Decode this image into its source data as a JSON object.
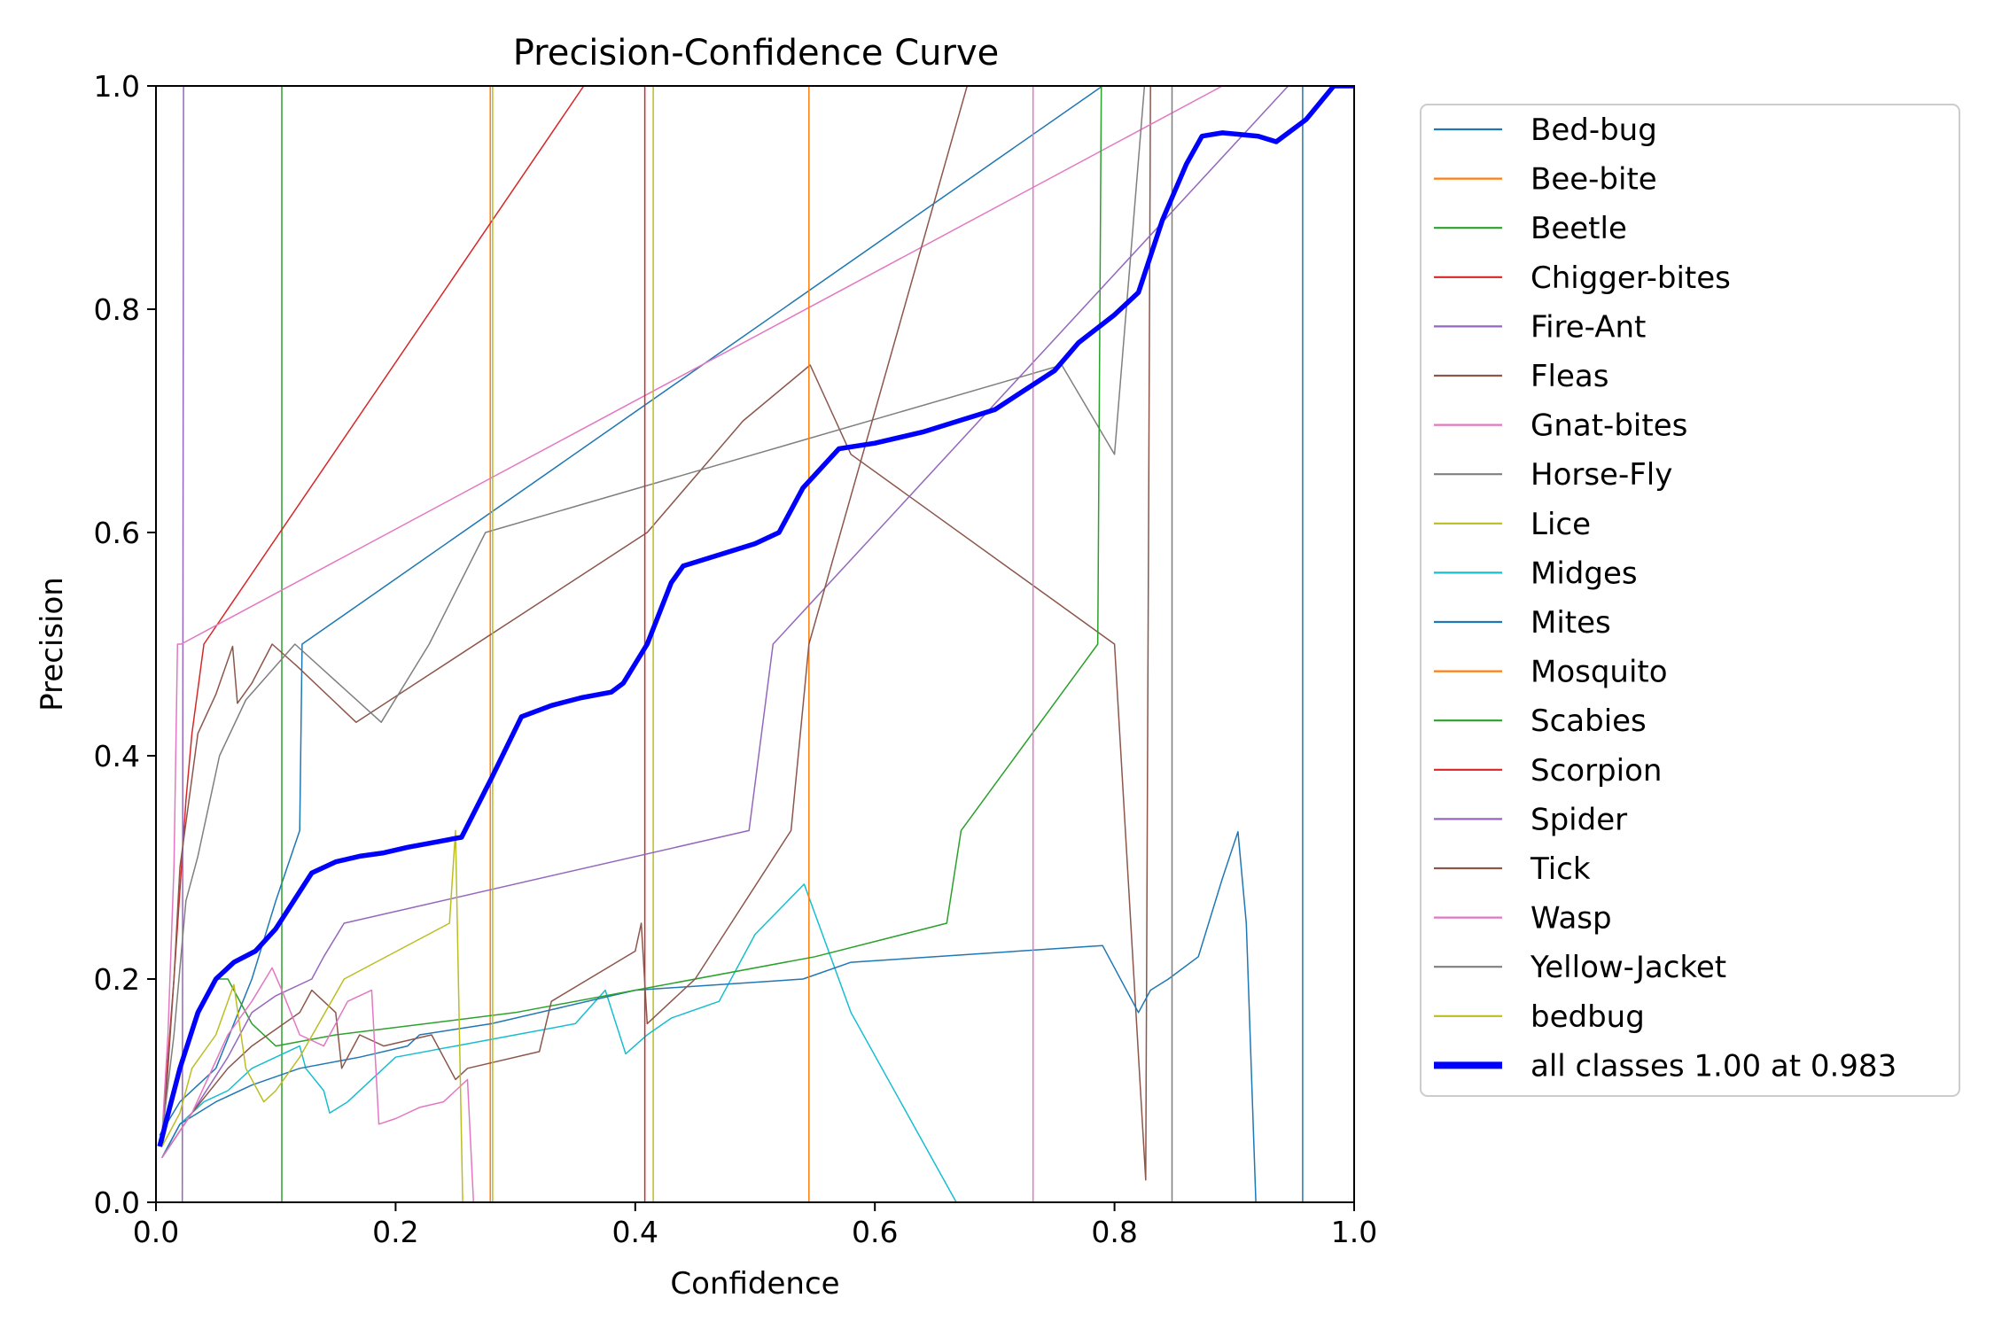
{
  "chart_data": {
    "type": "line",
    "title": "Precision-Confidence Curve",
    "xlabel": "Confidence",
    "ylabel": "Precision",
    "xlim": [
      0,
      1
    ],
    "ylim": [
      0,
      1
    ],
    "xticks": [
      "0.0",
      "0.2",
      "0.4",
      "0.6",
      "0.8",
      "1.0"
    ],
    "yticks": [
      "0.0",
      "0.2",
      "0.4",
      "0.6",
      "0.8",
      "1.0"
    ],
    "grid": false,
    "legend_position": "outside-right",
    "series": [
      {
        "name": "Bed-bug",
        "color": "#1f77b4",
        "width": 1.5,
        "points": [
          [
            0.003,
            0.06
          ],
          [
            0.02,
            0.09
          ],
          [
            0.05,
            0.12
          ],
          [
            0.08,
            0.2
          ],
          [
            0.1,
            0.27
          ],
          [
            0.12,
            0.333
          ],
          [
            0.122,
            0.5
          ],
          [
            0.79,
            1.0
          ],
          [
            1.0,
            1.0
          ]
        ]
      },
      {
        "name": "Bee-bite",
        "color": "#ff7f0e",
        "width": 1.5,
        "points": [
          [
            0.0,
            0.0
          ],
          [
            0.279,
            0.0
          ],
          [
            0.279,
            1.0
          ],
          [
            1.0,
            1.0
          ]
        ]
      },
      {
        "name": "Beetle",
        "color": "#2ca02c",
        "width": 1.5,
        "points": [
          [
            0.0,
            0.0
          ],
          [
            0.105,
            0.0
          ],
          [
            0.105,
            1.0
          ],
          [
            1.0,
            1.0
          ]
        ]
      },
      {
        "name": "Chigger-bites",
        "color": "#d62728",
        "width": 1.5,
        "points": [
          [
            0.005,
            0.06
          ],
          [
            0.015,
            0.2
          ],
          [
            0.025,
            0.36
          ],
          [
            0.03,
            0.42
          ],
          [
            0.04,
            0.5
          ],
          [
            0.357,
            1.0
          ],
          [
            1.0,
            1.0
          ]
        ]
      },
      {
        "name": "Fire-Ant",
        "color": "#9467bd",
        "width": 1.5,
        "points": [
          [
            0.0,
            0.0
          ],
          [
            0.022,
            0.0
          ],
          [
            0.023,
            1.0
          ],
          [
            1.0,
            1.0
          ]
        ]
      },
      {
        "name": "Fleas",
        "color": "#8c564b",
        "width": 1.5,
        "points": [
          [
            0.005,
            0.05
          ],
          [
            0.01,
            0.12
          ],
          [
            0.015,
            0.2
          ],
          [
            0.02,
            0.3
          ],
          [
            0.03,
            0.38
          ],
          [
            0.035,
            0.42
          ],
          [
            0.05,
            0.455
          ],
          [
            0.064,
            0.498
          ],
          [
            0.068,
            0.447
          ],
          [
            0.08,
            0.465
          ],
          [
            0.097,
            0.5
          ],
          [
            0.118,
            0.48
          ],
          [
            0.167,
            0.43
          ],
          [
            0.41,
            0.6
          ],
          [
            0.49,
            0.7
          ],
          [
            0.546,
            0.75
          ],
          [
            0.58,
            0.67
          ],
          [
            0.8,
            0.5
          ],
          [
            0.826,
            0.02
          ],
          [
            0.83,
            1.0
          ],
          [
            1.0,
            1.0
          ]
        ]
      },
      {
        "name": "Gnat-bites",
        "color": "#e377c2",
        "width": 1.5,
        "points": [
          [
            0.005,
            0.06
          ],
          [
            0.01,
            0.15
          ],
          [
            0.015,
            0.3
          ],
          [
            0.018,
            0.5
          ],
          [
            0.021,
            0.5
          ],
          [
            0.89,
            1.0
          ],
          [
            1.0,
            1.0
          ]
        ]
      },
      {
        "name": "Horse-Fly",
        "color": "#7f7f7f",
        "width": 1.5,
        "points": [
          [
            0.005,
            0.06
          ],
          [
            0.015,
            0.15
          ],
          [
            0.025,
            0.27
          ],
          [
            0.035,
            0.31
          ],
          [
            0.053,
            0.4
          ],
          [
            0.075,
            0.45
          ],
          [
            0.116,
            0.5
          ],
          [
            0.188,
            0.43
          ],
          [
            0.228,
            0.5
          ],
          [
            0.275,
            0.6
          ],
          [
            0.756,
            0.75
          ],
          [
            0.8,
            0.67
          ],
          [
            0.825,
            1.0
          ],
          [
            1.0,
            1.0
          ]
        ]
      },
      {
        "name": "Lice",
        "color": "#bcbd22",
        "width": 1.5,
        "points": [
          [
            0.0,
            0.0
          ],
          [
            0.415,
            0.0
          ],
          [
            0.415,
            1.0
          ],
          [
            1.0,
            1.0
          ]
        ]
      },
      {
        "name": "Midges",
        "color": "#17becf",
        "width": 1.5,
        "points": [
          [
            0.005,
            0.04
          ],
          [
            0.02,
            0.07
          ],
          [
            0.04,
            0.09
          ],
          [
            0.06,
            0.1
          ],
          [
            0.08,
            0.12
          ],
          [
            0.1,
            0.13
          ],
          [
            0.12,
            0.14
          ],
          [
            0.125,
            0.12
          ],
          [
            0.14,
            0.1
          ],
          [
            0.145,
            0.08
          ],
          [
            0.16,
            0.09
          ],
          [
            0.2,
            0.13
          ],
          [
            0.25,
            0.14
          ],
          [
            0.3,
            0.15
          ],
          [
            0.35,
            0.16
          ],
          [
            0.375,
            0.19
          ],
          [
            0.392,
            0.133
          ],
          [
            0.41,
            0.15
          ],
          [
            0.43,
            0.165
          ],
          [
            0.47,
            0.18
          ],
          [
            0.5,
            0.24
          ],
          [
            0.541,
            0.285
          ],
          [
            0.58,
            0.17
          ],
          [
            0.668,
            0.0
          ],
          [
            1.0,
            0.0
          ]
        ]
      },
      {
        "name": "Mites",
        "color": "#1f77b4",
        "width": 1.5,
        "points": [
          [
            0.005,
            0.04
          ],
          [
            0.02,
            0.07
          ],
          [
            0.05,
            0.09
          ],
          [
            0.08,
            0.105
          ],
          [
            0.12,
            0.12
          ],
          [
            0.17,
            0.13
          ],
          [
            0.21,
            0.14
          ],
          [
            0.22,
            0.15
          ],
          [
            0.28,
            0.16
          ],
          [
            0.4,
            0.19
          ],
          [
            0.54,
            0.2
          ],
          [
            0.58,
            0.215
          ],
          [
            0.79,
            0.23
          ],
          [
            0.82,
            0.17
          ],
          [
            0.83,
            0.19
          ],
          [
            0.845,
            0.2
          ],
          [
            0.87,
            0.22
          ],
          [
            0.89,
            0.29
          ],
          [
            0.903,
            0.332
          ],
          [
            0.91,
            0.25
          ],
          [
            0.918,
            0.0
          ],
          [
            0.957,
            0.0
          ],
          [
            0.957,
            1.0
          ],
          [
            1.0,
            1.0
          ]
        ]
      },
      {
        "name": "Mosquito",
        "color": "#ff7f0e",
        "width": 1.5,
        "points": [
          [
            0.0,
            0.0
          ],
          [
            0.545,
            0.0
          ],
          [
            0.545,
            1.0
          ],
          [
            1.0,
            1.0
          ]
        ]
      },
      {
        "name": "Scabies",
        "color": "#2ca02c",
        "width": 1.5,
        "points": [
          [
            0.005,
            0.05
          ],
          [
            0.02,
            0.12
          ],
          [
            0.03,
            0.15
          ],
          [
            0.04,
            0.18
          ],
          [
            0.05,
            0.2
          ],
          [
            0.06,
            0.2
          ],
          [
            0.08,
            0.16
          ],
          [
            0.1,
            0.14
          ],
          [
            0.15,
            0.15
          ],
          [
            0.3,
            0.17
          ],
          [
            0.4,
            0.19
          ],
          [
            0.55,
            0.22
          ],
          [
            0.66,
            0.25
          ],
          [
            0.672,
            0.333
          ],
          [
            0.786,
            0.5
          ],
          [
            0.789,
            1.0
          ],
          [
            1.0,
            1.0
          ]
        ]
      },
      {
        "name": "Scorpion",
        "color": "#d62728",
        "width": 1.5,
        "points": [
          [
            0.0,
            0.0
          ],
          [
            0.408,
            0.0
          ],
          [
            0.408,
            1.0
          ],
          [
            1.0,
            1.0
          ]
        ]
      },
      {
        "name": "Spider",
        "color": "#9467bd",
        "width": 1.5,
        "points": [
          [
            0.005,
            0.04
          ],
          [
            0.03,
            0.08
          ],
          [
            0.06,
            0.13
          ],
          [
            0.08,
            0.17
          ],
          [
            0.1,
            0.185
          ],
          [
            0.13,
            0.2
          ],
          [
            0.14,
            0.22
          ],
          [
            0.157,
            0.25
          ],
          [
            0.495,
            0.333
          ],
          [
            0.515,
            0.5
          ],
          [
            0.945,
            1.0
          ],
          [
            1.0,
            1.0
          ]
        ]
      },
      {
        "name": "Tick",
        "color": "#8c564b",
        "width": 1.5,
        "points": [
          [
            0.005,
            0.04
          ],
          [
            0.03,
            0.08
          ],
          [
            0.06,
            0.12
          ],
          [
            0.08,
            0.14
          ],
          [
            0.1,
            0.155
          ],
          [
            0.12,
            0.17
          ],
          [
            0.13,
            0.19
          ],
          [
            0.14,
            0.18
          ],
          [
            0.15,
            0.17
          ],
          [
            0.155,
            0.12
          ],
          [
            0.17,
            0.15
          ],
          [
            0.19,
            0.14
          ],
          [
            0.23,
            0.15
          ],
          [
            0.25,
            0.11
          ],
          [
            0.26,
            0.12
          ],
          [
            0.32,
            0.135
          ],
          [
            0.33,
            0.18
          ],
          [
            0.4,
            0.225
          ],
          [
            0.405,
            0.25
          ],
          [
            0.41,
            0.16
          ],
          [
            0.45,
            0.2
          ],
          [
            0.48,
            0.25
          ],
          [
            0.53,
            0.333
          ],
          [
            0.545,
            0.5
          ],
          [
            0.677,
            1.0
          ],
          [
            1.0,
            1.0
          ]
        ]
      },
      {
        "name": "Wasp",
        "color": "#e377c2",
        "width": 1.5,
        "points": [
          [
            0.005,
            0.04
          ],
          [
            0.03,
            0.08
          ],
          [
            0.06,
            0.15
          ],
          [
            0.08,
            0.18
          ],
          [
            0.097,
            0.21
          ],
          [
            0.105,
            0.19
          ],
          [
            0.12,
            0.15
          ],
          [
            0.14,
            0.14
          ],
          [
            0.16,
            0.18
          ],
          [
            0.18,
            0.19
          ],
          [
            0.186,
            0.07
          ],
          [
            0.2,
            0.075
          ],
          [
            0.22,
            0.085
          ],
          [
            0.24,
            0.09
          ],
          [
            0.25,
            0.1
          ],
          [
            0.26,
            0.11
          ],
          [
            0.265,
            0.0
          ],
          [
            0.732,
            0.0
          ],
          [
            0.732,
            1.0
          ],
          [
            1.0,
            1.0
          ]
        ]
      },
      {
        "name": "Yellow-Jacket",
        "color": "#7f7f7f",
        "width": 1.5,
        "points": [
          [
            0.0,
            0.0
          ],
          [
            0.848,
            0.0
          ],
          [
            0.848,
            1.0
          ],
          [
            1.0,
            1.0
          ]
        ]
      },
      {
        "name": "bedbug",
        "color": "#bcbd22",
        "width": 1.5,
        "points": [
          [
            0.005,
            0.05
          ],
          [
            0.02,
            0.08
          ],
          [
            0.03,
            0.12
          ],
          [
            0.05,
            0.15
          ],
          [
            0.065,
            0.195
          ],
          [
            0.075,
            0.12
          ],
          [
            0.09,
            0.09
          ],
          [
            0.1,
            0.1
          ],
          [
            0.12,
            0.13
          ],
          [
            0.157,
            0.2
          ],
          [
            0.245,
            0.25
          ],
          [
            0.25,
            0.333
          ],
          [
            0.256,
            0.0
          ],
          [
            0.281,
            0.0
          ],
          [
            0.281,
            1.0
          ],
          [
            1.0,
            1.0
          ]
        ]
      },
      {
        "name": "all classes 1.00 at 0.983",
        "color": "#0000ff",
        "width": 5.5,
        "points": [
          [
            0.003,
            0.05
          ],
          [
            0.02,
            0.12
          ],
          [
            0.035,
            0.17
          ],
          [
            0.05,
            0.2
          ],
          [
            0.065,
            0.215
          ],
          [
            0.083,
            0.225
          ],
          [
            0.1,
            0.245
          ],
          [
            0.115,
            0.27
          ],
          [
            0.13,
            0.295
          ],
          [
            0.15,
            0.305
          ],
          [
            0.17,
            0.31
          ],
          [
            0.19,
            0.313
          ],
          [
            0.21,
            0.318
          ],
          [
            0.23,
            0.322
          ],
          [
            0.25,
            0.326
          ],
          [
            0.255,
            0.327
          ],
          [
            0.28,
            0.38
          ],
          [
            0.305,
            0.435
          ],
          [
            0.33,
            0.445
          ],
          [
            0.355,
            0.452
          ],
          [
            0.38,
            0.457
          ],
          [
            0.39,
            0.465
          ],
          [
            0.41,
            0.5
          ],
          [
            0.43,
            0.555
          ],
          [
            0.44,
            0.57
          ],
          [
            0.47,
            0.58
          ],
          [
            0.5,
            0.59
          ],
          [
            0.52,
            0.6
          ],
          [
            0.54,
            0.64
          ],
          [
            0.57,
            0.675
          ],
          [
            0.6,
            0.68
          ],
          [
            0.64,
            0.69
          ],
          [
            0.7,
            0.71
          ],
          [
            0.75,
            0.745
          ],
          [
            0.77,
            0.77
          ],
          [
            0.8,
            0.795
          ],
          [
            0.82,
            0.815
          ],
          [
            0.84,
            0.88
          ],
          [
            0.86,
            0.93
          ],
          [
            0.873,
            0.955
          ],
          [
            0.89,
            0.958
          ],
          [
            0.92,
            0.955
          ],
          [
            0.935,
            0.95
          ],
          [
            0.96,
            0.97
          ],
          [
            0.983,
            1.0
          ],
          [
            1.0,
            1.0
          ]
        ]
      }
    ]
  }
}
